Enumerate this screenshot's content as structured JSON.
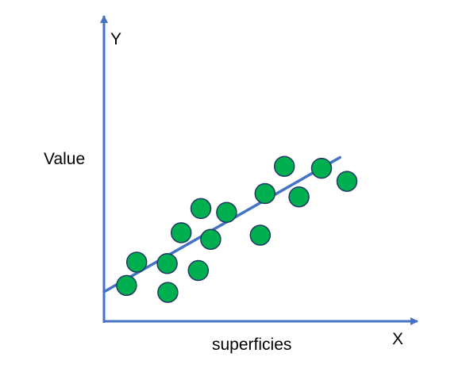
{
  "diagram": {
    "y_axis_letter": "Y",
    "x_axis_letter": "X",
    "ylabel": "Value",
    "xlabel": "superficies"
  },
  "chart_data": {
    "type": "scatter",
    "title": "",
    "xlabel": "superficies",
    "ylabel": "Value",
    "xlim": [
      0,
      10
    ],
    "ylim": [
      0,
      10
    ],
    "grid": false,
    "points": [
      {
        "x": 0.71,
        "y": 1.29
      },
      {
        "x": 1.03,
        "y": 2.13
      },
      {
        "x": 1.99,
        "y": 2.08
      },
      {
        "x": 2.01,
        "y": 1.04
      },
      {
        "x": 2.43,
        "y": 3.19
      },
      {
        "x": 2.97,
        "y": 1.83
      },
      {
        "x": 3.05,
        "y": 4.06
      },
      {
        "x": 3.36,
        "y": 2.95
      },
      {
        "x": 3.86,
        "y": 3.92
      },
      {
        "x": 4.92,
        "y": 3.1
      },
      {
        "x": 5.07,
        "y": 4.6
      },
      {
        "x": 5.68,
        "y": 5.58
      },
      {
        "x": 6.14,
        "y": 4.48
      },
      {
        "x": 6.85,
        "y": 5.51
      },
      {
        "x": 7.65,
        "y": 5.04
      }
    ],
    "trendline": {
      "x": [
        0,
        7.43
      ],
      "y": [
        1.06,
        5.9
      ]
    },
    "colors": {
      "points": "#00b050",
      "point_outline": "#1f3864",
      "line": "#4472c4",
      "axes": "#4472c4"
    }
  }
}
